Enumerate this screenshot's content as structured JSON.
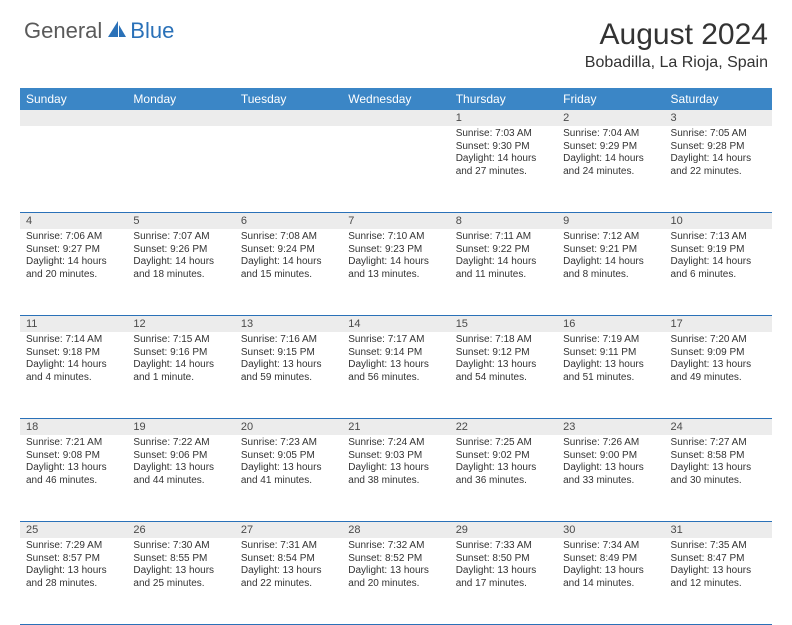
{
  "logo": {
    "general": "General",
    "blue": "Blue"
  },
  "title": "August 2024",
  "location": "Bobadilla, La Rioja, Spain",
  "colors": {
    "header_bg": "#3b86c6",
    "accent": "#2a71b8",
    "daynum_bg": "#ececec",
    "text": "#333333"
  },
  "dows": [
    "Sunday",
    "Monday",
    "Tuesday",
    "Wednesday",
    "Thursday",
    "Friday",
    "Saturday"
  ],
  "weeks": [
    [
      null,
      null,
      null,
      null,
      {
        "n": "1",
        "sunrise": "Sunrise: 7:03 AM",
        "sunset": "Sunset: 9:30 PM",
        "day1": "Daylight: 14 hours",
        "day2": "and 27 minutes."
      },
      {
        "n": "2",
        "sunrise": "Sunrise: 7:04 AM",
        "sunset": "Sunset: 9:29 PM",
        "day1": "Daylight: 14 hours",
        "day2": "and 24 minutes."
      },
      {
        "n": "3",
        "sunrise": "Sunrise: 7:05 AM",
        "sunset": "Sunset: 9:28 PM",
        "day1": "Daylight: 14 hours",
        "day2": "and 22 minutes."
      }
    ],
    [
      {
        "n": "4",
        "sunrise": "Sunrise: 7:06 AM",
        "sunset": "Sunset: 9:27 PM",
        "day1": "Daylight: 14 hours",
        "day2": "and 20 minutes."
      },
      {
        "n": "5",
        "sunrise": "Sunrise: 7:07 AM",
        "sunset": "Sunset: 9:26 PM",
        "day1": "Daylight: 14 hours",
        "day2": "and 18 minutes."
      },
      {
        "n": "6",
        "sunrise": "Sunrise: 7:08 AM",
        "sunset": "Sunset: 9:24 PM",
        "day1": "Daylight: 14 hours",
        "day2": "and 15 minutes."
      },
      {
        "n": "7",
        "sunrise": "Sunrise: 7:10 AM",
        "sunset": "Sunset: 9:23 PM",
        "day1": "Daylight: 14 hours",
        "day2": "and 13 minutes."
      },
      {
        "n": "8",
        "sunrise": "Sunrise: 7:11 AM",
        "sunset": "Sunset: 9:22 PM",
        "day1": "Daylight: 14 hours",
        "day2": "and 11 minutes."
      },
      {
        "n": "9",
        "sunrise": "Sunrise: 7:12 AM",
        "sunset": "Sunset: 9:21 PM",
        "day1": "Daylight: 14 hours",
        "day2": "and 8 minutes."
      },
      {
        "n": "10",
        "sunrise": "Sunrise: 7:13 AM",
        "sunset": "Sunset: 9:19 PM",
        "day1": "Daylight: 14 hours",
        "day2": "and 6 minutes."
      }
    ],
    [
      {
        "n": "11",
        "sunrise": "Sunrise: 7:14 AM",
        "sunset": "Sunset: 9:18 PM",
        "day1": "Daylight: 14 hours",
        "day2": "and 4 minutes."
      },
      {
        "n": "12",
        "sunrise": "Sunrise: 7:15 AM",
        "sunset": "Sunset: 9:16 PM",
        "day1": "Daylight: 14 hours",
        "day2": "and 1 minute."
      },
      {
        "n": "13",
        "sunrise": "Sunrise: 7:16 AM",
        "sunset": "Sunset: 9:15 PM",
        "day1": "Daylight: 13 hours",
        "day2": "and 59 minutes."
      },
      {
        "n": "14",
        "sunrise": "Sunrise: 7:17 AM",
        "sunset": "Sunset: 9:14 PM",
        "day1": "Daylight: 13 hours",
        "day2": "and 56 minutes."
      },
      {
        "n": "15",
        "sunrise": "Sunrise: 7:18 AM",
        "sunset": "Sunset: 9:12 PM",
        "day1": "Daylight: 13 hours",
        "day2": "and 54 minutes."
      },
      {
        "n": "16",
        "sunrise": "Sunrise: 7:19 AM",
        "sunset": "Sunset: 9:11 PM",
        "day1": "Daylight: 13 hours",
        "day2": "and 51 minutes."
      },
      {
        "n": "17",
        "sunrise": "Sunrise: 7:20 AM",
        "sunset": "Sunset: 9:09 PM",
        "day1": "Daylight: 13 hours",
        "day2": "and 49 minutes."
      }
    ],
    [
      {
        "n": "18",
        "sunrise": "Sunrise: 7:21 AM",
        "sunset": "Sunset: 9:08 PM",
        "day1": "Daylight: 13 hours",
        "day2": "and 46 minutes."
      },
      {
        "n": "19",
        "sunrise": "Sunrise: 7:22 AM",
        "sunset": "Sunset: 9:06 PM",
        "day1": "Daylight: 13 hours",
        "day2": "and 44 minutes."
      },
      {
        "n": "20",
        "sunrise": "Sunrise: 7:23 AM",
        "sunset": "Sunset: 9:05 PM",
        "day1": "Daylight: 13 hours",
        "day2": "and 41 minutes."
      },
      {
        "n": "21",
        "sunrise": "Sunrise: 7:24 AM",
        "sunset": "Sunset: 9:03 PM",
        "day1": "Daylight: 13 hours",
        "day2": "and 38 minutes."
      },
      {
        "n": "22",
        "sunrise": "Sunrise: 7:25 AM",
        "sunset": "Sunset: 9:02 PM",
        "day1": "Daylight: 13 hours",
        "day2": "and 36 minutes."
      },
      {
        "n": "23",
        "sunrise": "Sunrise: 7:26 AM",
        "sunset": "Sunset: 9:00 PM",
        "day1": "Daylight: 13 hours",
        "day2": "and 33 minutes."
      },
      {
        "n": "24",
        "sunrise": "Sunrise: 7:27 AM",
        "sunset": "Sunset: 8:58 PM",
        "day1": "Daylight: 13 hours",
        "day2": "and 30 minutes."
      }
    ],
    [
      {
        "n": "25",
        "sunrise": "Sunrise: 7:29 AM",
        "sunset": "Sunset: 8:57 PM",
        "day1": "Daylight: 13 hours",
        "day2": "and 28 minutes."
      },
      {
        "n": "26",
        "sunrise": "Sunrise: 7:30 AM",
        "sunset": "Sunset: 8:55 PM",
        "day1": "Daylight: 13 hours",
        "day2": "and 25 minutes."
      },
      {
        "n": "27",
        "sunrise": "Sunrise: 7:31 AM",
        "sunset": "Sunset: 8:54 PM",
        "day1": "Daylight: 13 hours",
        "day2": "and 22 minutes."
      },
      {
        "n": "28",
        "sunrise": "Sunrise: 7:32 AM",
        "sunset": "Sunset: 8:52 PM",
        "day1": "Daylight: 13 hours",
        "day2": "and 20 minutes."
      },
      {
        "n": "29",
        "sunrise": "Sunrise: 7:33 AM",
        "sunset": "Sunset: 8:50 PM",
        "day1": "Daylight: 13 hours",
        "day2": "and 17 minutes."
      },
      {
        "n": "30",
        "sunrise": "Sunrise: 7:34 AM",
        "sunset": "Sunset: 8:49 PM",
        "day1": "Daylight: 13 hours",
        "day2": "and 14 minutes."
      },
      {
        "n": "31",
        "sunrise": "Sunrise: 7:35 AM",
        "sunset": "Sunset: 8:47 PM",
        "day1": "Daylight: 13 hours",
        "day2": "and 12 minutes."
      }
    ]
  ]
}
